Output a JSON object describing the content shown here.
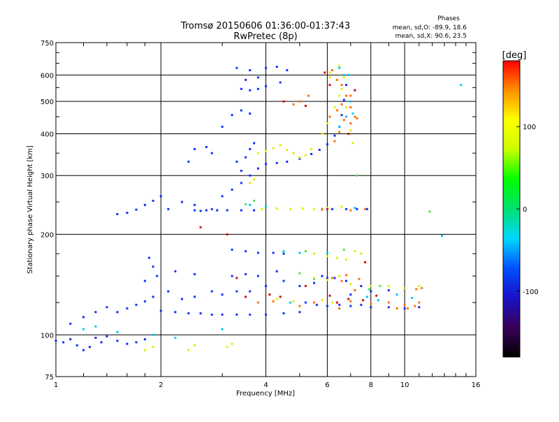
{
  "chart_data": {
    "type": "scatter",
    "title": "Tromsø 20150606 01:36:00-01:37:43",
    "subtitle": "RwPretec (8p)",
    "xlabel": "Frequency [MHz]",
    "ylabel": "Stationary phase Virtual Height [km]",
    "x_scale": "log",
    "y_scale": "log",
    "xlim": [
      1,
      16
    ],
    "ylim": [
      75,
      750
    ],
    "x_ticks": [
      "1",
      "2",
      "4",
      "6",
      "8",
      "10",
      "16"
    ],
    "x_tick_values": [
      1,
      2,
      4,
      6,
      8,
      10,
      16
    ],
    "y_ticks": [
      "75",
      "100",
      "200",
      "300",
      "400",
      "500",
      "600",
      "750"
    ],
    "y_tick_values": [
      75,
      100,
      200,
      300,
      400,
      500,
      600,
      750
    ],
    "grid": true,
    "info_title": "Phases",
    "info_lines": [
      "mean, sd,O: -89.9, 18.6",
      "mean, sd,X:  90.6, 23.5"
    ],
    "colorbar": {
      "label": "[deg]",
      "range": [
        -180,
        180
      ],
      "ticks": [
        "100",
        "0",
        "-100"
      ],
      "tick_values": [
        100,
        0,
        -100
      ],
      "colors": [
        "#000000",
        "#3a005a",
        "#1a10c8",
        "#0050ff",
        "#00d8ff",
        "#00e070",
        "#00ff00",
        "#c8ff00",
        "#ffff00",
        "#ff9000",
        "#ff0000"
      ]
    },
    "series": [
      {
        "color": "#1030ff",
        "points": [
          [
            1.0,
            96
          ],
          [
            1.05,
            95
          ],
          [
            1.1,
            97
          ],
          [
            1.15,
            93
          ],
          [
            1.2,
            90
          ],
          [
            1.25,
            92
          ],
          [
            1.3,
            98
          ],
          [
            1.35,
            95
          ],
          [
            1.4,
            99
          ],
          [
            1.5,
            96
          ],
          [
            1.6,
            94
          ],
          [
            1.7,
            95
          ],
          [
            1.8,
            97
          ],
          [
            1.1,
            108
          ],
          [
            1.2,
            113
          ],
          [
            1.3,
            117
          ],
          [
            1.4,
            121
          ],
          [
            1.5,
            117
          ],
          [
            1.6,
            120
          ],
          [
            1.7,
            123
          ],
          [
            1.8,
            126
          ],
          [
            1.9,
            130
          ],
          [
            2.0,
            118
          ],
          [
            2.2,
            117
          ],
          [
            2.4,
            116
          ],
          [
            2.6,
            116
          ],
          [
            2.8,
            115
          ],
          [
            3.0,
            115
          ],
          [
            3.3,
            115
          ],
          [
            3.6,
            115
          ],
          [
            4.0,
            115
          ],
          [
            4.5,
            116
          ],
          [
            5.0,
            117
          ],
          [
            1.85,
            170
          ],
          [
            1.9,
            160
          ],
          [
            1.95,
            150
          ],
          [
            1.8,
            145
          ],
          [
            2.1,
            135
          ],
          [
            2.3,
            128
          ],
          [
            2.5,
            130
          ],
          [
            2.8,
            135
          ],
          [
            3.0,
            132
          ],
          [
            3.3,
            135
          ],
          [
            3.6,
            135
          ],
          [
            4.0,
            140
          ],
          [
            4.5,
            145
          ],
          [
            5.0,
            140
          ],
          [
            5.5,
            143
          ],
          [
            6.0,
            148
          ],
          [
            2.2,
            155
          ],
          [
            2.5,
            152
          ],
          [
            3.2,
            150
          ],
          [
            3.5,
            152
          ],
          [
            3.8,
            150
          ],
          [
            4.3,
            155
          ],
          [
            3.2,
            180
          ],
          [
            3.5,
            178
          ],
          [
            3.8,
            176
          ],
          [
            4.2,
            176
          ],
          [
            4.5,
            175
          ],
          [
            1.5,
            230
          ],
          [
            1.6,
            232
          ],
          [
            1.7,
            237
          ],
          [
            1.8,
            245
          ],
          [
            1.9,
            252
          ],
          [
            2.0,
            260
          ],
          [
            2.1,
            238
          ],
          [
            2.3,
            250
          ],
          [
            2.5,
            245
          ],
          [
            2.6,
            235
          ],
          [
            2.8,
            238
          ],
          [
            3.0,
            260
          ],
          [
            3.2,
            272
          ],
          [
            3.4,
            285
          ],
          [
            3.6,
            300
          ],
          [
            3.8,
            315
          ],
          [
            4.0,
            325
          ],
          [
            4.3,
            327
          ],
          [
            4.6,
            330
          ],
          [
            5.0,
            337
          ],
          [
            5.4,
            348
          ],
          [
            5.7,
            358
          ],
          [
            6.0,
            372
          ],
          [
            6.3,
            395
          ],
          [
            6.5,
            420
          ],
          [
            6.6,
            455
          ],
          [
            6.7,
            505
          ],
          [
            6.8,
            560
          ],
          [
            3.3,
            330
          ],
          [
            3.5,
            340
          ],
          [
            3.6,
            360
          ],
          [
            3.7,
            375
          ],
          [
            3.4,
            310
          ],
          [
            2.5,
            360
          ],
          [
            2.7,
            365
          ],
          [
            2.8,
            350
          ],
          [
            2.4,
            330
          ],
          [
            3.0,
            420
          ],
          [
            3.2,
            455
          ],
          [
            3.4,
            470
          ],
          [
            3.6,
            460
          ],
          [
            3.3,
            630
          ],
          [
            3.6,
            620
          ],
          [
            4.0,
            630
          ],
          [
            4.3,
            635
          ],
          [
            4.6,
            620
          ],
          [
            3.4,
            545
          ],
          [
            3.6,
            540
          ],
          [
            3.8,
            545
          ],
          [
            4.0,
            555
          ],
          [
            4.4,
            570
          ],
          [
            3.5,
            580
          ],
          [
            3.8,
            590
          ],
          [
            2.5,
            236
          ],
          [
            2.7,
            236
          ],
          [
            2.9,
            236
          ],
          [
            3.1,
            236
          ],
          [
            3.4,
            236
          ],
          [
            3.7,
            236
          ],
          [
            5.8,
            238
          ],
          [
            6.2,
            238
          ],
          [
            6.8,
            238
          ],
          [
            7.3,
            238
          ],
          [
            7.8,
            238
          ],
          [
            5.2,
            125
          ],
          [
            5.6,
            123
          ],
          [
            6.0,
            122
          ],
          [
            6.5,
            123
          ],
          [
            7.0,
            122
          ],
          [
            7.5,
            123
          ],
          [
            8.0,
            121
          ],
          [
            9.0,
            121
          ],
          [
            10.0,
            120
          ],
          [
            11.0,
            121
          ],
          [
            7.0,
            132
          ],
          [
            8.0,
            135
          ],
          [
            9.0,
            136
          ],
          [
            10.0,
            138
          ],
          [
            5.8,
            150
          ],
          [
            6.3,
            148
          ],
          [
            6.8,
            145
          ],
          [
            7.5,
            140
          ]
        ]
      },
      {
        "color": "#00c8ff",
        "points": [
          [
            1.2,
            104
          ],
          [
            1.3,
            106
          ],
          [
            1.5,
            102
          ],
          [
            1.9,
            100
          ],
          [
            2.2,
            98
          ],
          [
            3.0,
            104
          ],
          [
            3.6,
            245
          ],
          [
            4.0,
            242
          ],
          [
            5.5,
            175
          ],
          [
            6.0,
            176
          ],
          [
            6.5,
            420
          ],
          [
            6.8,
            450
          ],
          [
            7.1,
            460
          ],
          [
            6.9,
            600
          ],
          [
            12.8,
            198
          ],
          [
            14.5,
            560
          ],
          [
            4.5,
            178
          ],
          [
            5.0,
            176
          ],
          [
            5.5,
            147
          ],
          [
            9.5,
            132
          ],
          [
            10.5,
            129
          ],
          [
            4.7,
            125
          ],
          [
            7.8,
            130
          ],
          [
            8.4,
            127
          ],
          [
            5.8,
            238
          ],
          [
            7.2,
            240
          ],
          [
            7.0,
            500
          ],
          [
            7.2,
            540
          ],
          [
            6.7,
            600
          ],
          [
            6.5,
            630
          ]
        ]
      },
      {
        "color": "#e0f000",
        "points": [
          [
            1.8,
            90
          ],
          [
            1.9,
            92
          ],
          [
            2.4,
            90
          ],
          [
            2.5,
            93
          ],
          [
            3.1,
            92
          ],
          [
            3.2,
            94
          ],
          [
            3.6,
            285
          ],
          [
            3.7,
            292
          ],
          [
            3.8,
            350
          ],
          [
            4.0,
            355
          ],
          [
            4.2,
            362
          ],
          [
            4.4,
            370
          ],
          [
            4.6,
            358
          ],
          [
            4.8,
            350
          ],
          [
            5.0,
            340
          ],
          [
            5.2,
            345
          ],
          [
            5.4,
            360
          ],
          [
            5.8,
            400
          ],
          [
            6.0,
            430
          ],
          [
            6.3,
            480
          ],
          [
            6.5,
            520
          ],
          [
            6.7,
            590
          ],
          [
            6.5,
            640
          ],
          [
            6.1,
            610
          ],
          [
            5.5,
            175
          ],
          [
            6.0,
            172
          ],
          [
            6.4,
            170
          ],
          [
            6.8,
            168
          ],
          [
            7.2,
            178
          ],
          [
            7.5,
            175
          ],
          [
            5.5,
            148
          ],
          [
            6.0,
            146
          ],
          [
            6.5,
            150
          ],
          [
            7.0,
            142
          ],
          [
            8.0,
            140
          ],
          [
            9.0,
            140
          ],
          [
            10.0,
            138
          ],
          [
            11.0,
            140
          ],
          [
            4.3,
            128
          ],
          [
            4.8,
            126
          ],
          [
            5.8,
            127
          ],
          [
            6.2,
            125
          ],
          [
            3.9,
            238
          ],
          [
            4.3,
            239
          ],
          [
            4.7,
            238
          ],
          [
            5.1,
            239
          ],
          [
            5.5,
            238
          ],
          [
            6.0,
            240
          ],
          [
            6.6,
            242
          ],
          [
            6.1,
            590
          ],
          [
            6.6,
            545
          ],
          [
            6.8,
            480
          ],
          [
            7.0,
            410
          ],
          [
            7.1,
            375
          ]
        ]
      },
      {
        "color": "#ff7000",
        "points": [
          [
            6.6,
            560
          ],
          [
            6.8,
            520
          ],
          [
            7.0,
            480
          ],
          [
            7.2,
            450
          ],
          [
            6.4,
            470
          ],
          [
            6.6,
            490
          ],
          [
            7.0,
            520
          ],
          [
            6.7,
            440
          ],
          [
            7.0,
            430
          ],
          [
            7.3,
            445
          ],
          [
            6.5,
            405
          ],
          [
            6.3,
            380
          ],
          [
            5.5,
            125
          ],
          [
            6.5,
            120
          ],
          [
            7.0,
            126
          ],
          [
            8.0,
            124
          ],
          [
            9.0,
            125
          ],
          [
            10.0,
            123
          ],
          [
            11.0,
            125
          ],
          [
            5.8,
            237
          ],
          [
            7.0,
            236
          ],
          [
            7.7,
            238
          ],
          [
            6.2,
            148
          ],
          [
            6.8,
            151
          ],
          [
            7.4,
            147
          ],
          [
            4.2,
            126
          ],
          [
            5.0,
            122
          ],
          [
            3.8,
            125
          ],
          [
            4.8,
            490
          ],
          [
            5.0,
            500
          ],
          [
            5.3,
            520
          ],
          [
            6.1,
            450
          ],
          [
            6.2,
            620
          ],
          [
            6.4,
            580
          ],
          [
            10.8,
            137
          ],
          [
            11.2,
            138
          ],
          [
            6.6,
            145
          ],
          [
            7.2,
            136
          ],
          [
            9.5,
            120
          ],
          [
            10.2,
            120
          ],
          [
            10.7,
            122
          ]
        ]
      },
      {
        "color": "#d01010",
        "points": [
          [
            3.3,
            148
          ],
          [
            3.5,
            130
          ],
          [
            4.1,
            132
          ],
          [
            4.4,
            130
          ],
          [
            5.2,
            140
          ],
          [
            6.1,
            131
          ],
          [
            6.9,
            128
          ],
          [
            7.6,
            127
          ],
          [
            4.5,
            500
          ],
          [
            5.2,
            485
          ],
          [
            5.9,
            610
          ],
          [
            6.1,
            560
          ],
          [
            6.9,
            400
          ],
          [
            7.2,
            540
          ],
          [
            2.6,
            210
          ],
          [
            3.1,
            200
          ],
          [
            6.4,
            125
          ],
          [
            8.3,
            131
          ],
          [
            7.7,
            165
          ],
          [
            6.0,
            238
          ]
        ]
      },
      {
        "color": "#50e050",
        "points": [
          [
            3.5,
            246
          ],
          [
            3.7,
            252
          ],
          [
            5.2,
            178
          ],
          [
            6.7,
            180
          ],
          [
            7.9,
            137
          ],
          [
            11.8,
            234
          ],
          [
            7.3,
            300
          ],
          [
            8.5,
            140
          ],
          [
            5.0,
            153
          ]
        ]
      }
    ]
  }
}
